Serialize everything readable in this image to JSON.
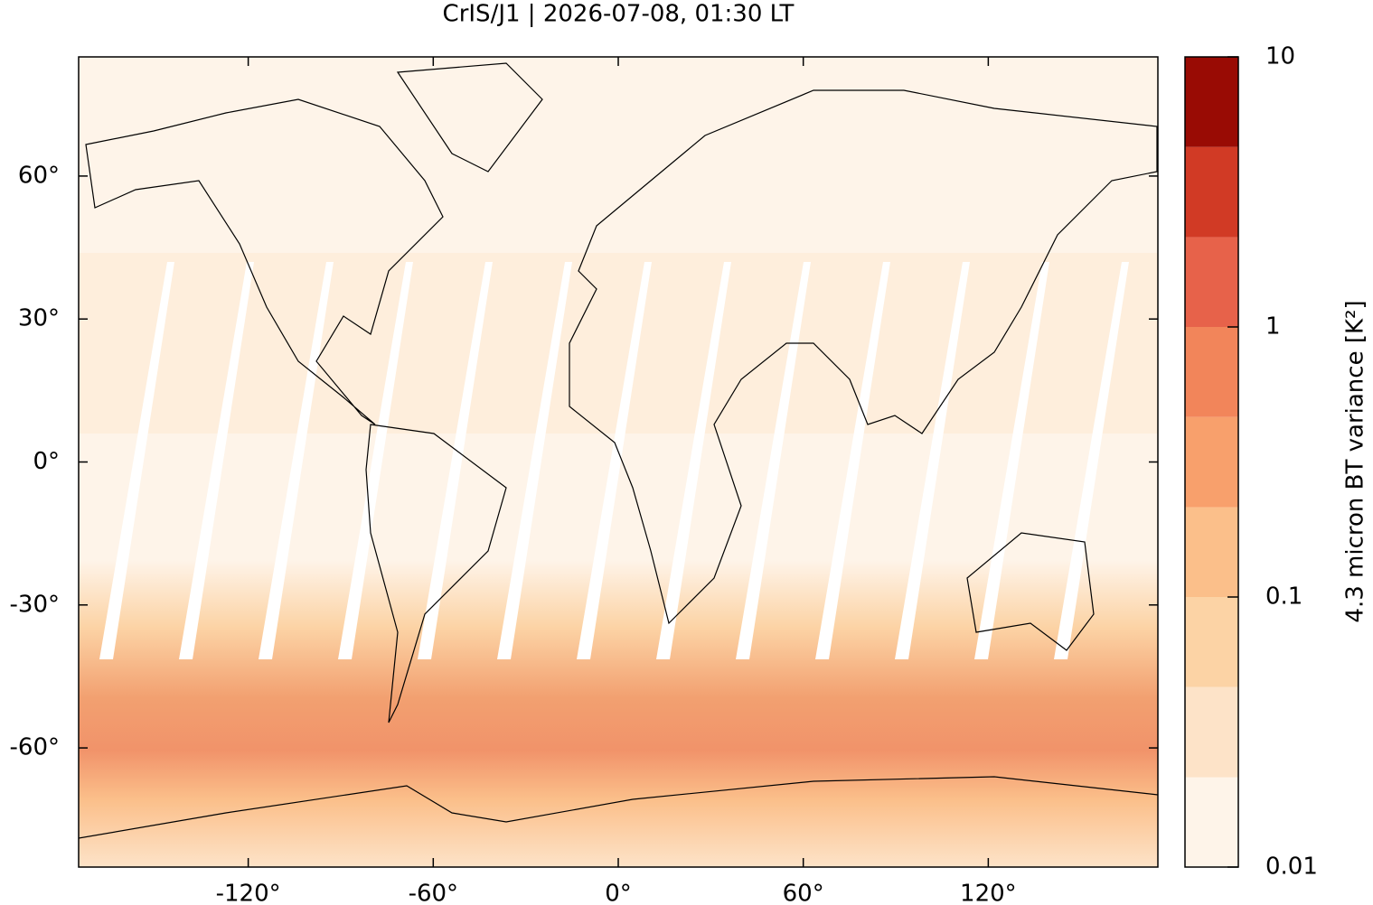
{
  "chart_data": {
    "type": "map",
    "title": "CrIS/J1 | 2026-07-08, 01:30 LT",
    "xlim": [
      -175,
      175
    ],
    "ylim": [
      -85,
      85
    ],
    "xticks": [
      {
        "value": -120,
        "label": "-120°"
      },
      {
        "value": -60,
        "label": "-60°"
      },
      {
        "value": 0,
        "label": "0°"
      },
      {
        "value": 60,
        "label": "60°"
      },
      {
        "value": 120,
        "label": "120°"
      }
    ],
    "yticks": [
      {
        "value": -60,
        "label": "-60°"
      },
      {
        "value": -30,
        "label": "-30°"
      },
      {
        "value": 0,
        "label": "0°"
      },
      {
        "value": 30,
        "label": "30°"
      },
      {
        "value": 60,
        "label": "60°"
      }
    ],
    "colorbar": {
      "label": "4.3 micron BT variance [K²]",
      "log_scale": true,
      "lim": [
        0.01,
        10
      ],
      "ticks": [
        0.01,
        0.1,
        1,
        10
      ],
      "levels": [
        0.01,
        0.0215,
        0.0464,
        0.1,
        0.215,
        0.464,
        1,
        2.15,
        4.64,
        10
      ],
      "colors": [
        "#fef4e9",
        "#fde3c8",
        "#fcd3a5",
        "#fbbf8a",
        "#f8a06c",
        "#f2855a",
        "#e7624a",
        "#d13a25",
        "#990b04"
      ]
    }
  }
}
